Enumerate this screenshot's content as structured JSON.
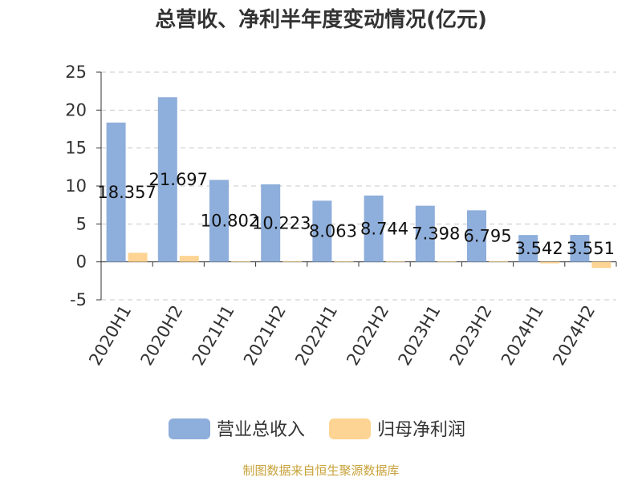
{
  "chart_data": {
    "type": "bar",
    "title": "总营收、净利半年度变动情况(亿元)",
    "categories": [
      "2020H1",
      "2020H2",
      "2021H1",
      "2021H2",
      "2022H1",
      "2022H2",
      "2023H1",
      "2023H2",
      "2024H1",
      "2024H2"
    ],
    "series": [
      {
        "name": "营业总收入",
        "color": "#8eaedb",
        "values": [
          18.357,
          21.697,
          10.802,
          10.223,
          8.063,
          8.744,
          7.398,
          6.795,
          3.542,
          3.551
        ],
        "labels": [
          "18.357",
          "21.697",
          "10.802",
          "10.223",
          "8.063",
          "8.744",
          "7.398",
          "6.795",
          "3.542",
          "3.551"
        ]
      },
      {
        "name": "归母净利润",
        "color": "#fdd493",
        "values": [
          1.2,
          0.8,
          0.1,
          0.1,
          0.1,
          0.1,
          0.1,
          0.1,
          -0.2,
          -0.8
        ]
      }
    ],
    "ylim": [
      -5,
      25
    ],
    "yticks": [
      -5,
      0,
      5,
      10,
      15,
      20,
      25
    ],
    "grid": true,
    "legend_position": "bottom",
    "xlabel": "",
    "ylabel": ""
  },
  "source_text": "制图数据来自恒生聚源数据库"
}
